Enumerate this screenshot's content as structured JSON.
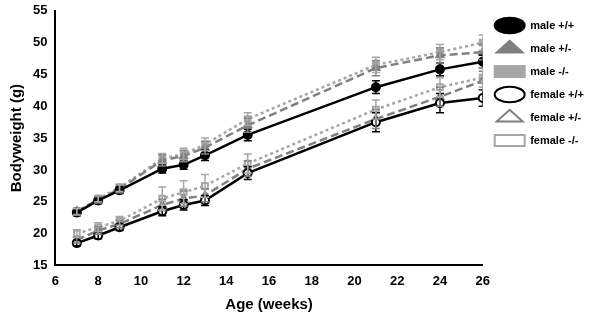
{
  "chart_data": {
    "type": "line",
    "x_label": "Age (weeks)",
    "y_label": "Bodyweight (g)",
    "x": [
      7,
      8,
      9,
      11,
      12,
      13,
      15,
      21,
      24,
      26
    ],
    "xlim": [
      6,
      26
    ],
    "xticks": [
      6,
      8,
      10,
      12,
      14,
      16,
      18,
      20,
      22,
      24,
      26
    ],
    "ylim": [
      15,
      55
    ],
    "yticks": [
      15,
      20,
      25,
      30,
      35,
      40,
      45,
      50,
      55
    ],
    "grid": false,
    "legend": "right",
    "series": [
      {
        "name": "male +/+",
        "color": "#000000",
        "marker": "circle",
        "line_style": "solid",
        "values": [
          23.3,
          25.2,
          26.8,
          30.2,
          30.8,
          32.3,
          35.5,
          43.0,
          45.8,
          47.0
        ],
        "error": [
          0.5,
          0.5,
          0.5,
          0.7,
          0.7,
          0.8,
          0.9,
          1.0,
          1.0,
          1.0
        ]
      },
      {
        "name": "male +/-",
        "color": "#808080",
        "marker": "triangle",
        "line_style": "dashed",
        "values": [
          23.5,
          25.3,
          27.0,
          31.5,
          32.2,
          33.5,
          37.0,
          46.0,
          48.0,
          48.5
        ],
        "error": [
          0.5,
          0.5,
          0.6,
          0.9,
          0.9,
          1.0,
          1.1,
          1.2,
          1.2,
          1.2
        ]
      },
      {
        "name": "male -/-",
        "color": "#a6a6a6",
        "marker": "rect",
        "line_style": "dotted",
        "values": [
          23.4,
          25.5,
          27.2,
          31.8,
          32.5,
          34.0,
          38.0,
          46.5,
          48.5,
          50.0
        ],
        "error": [
          0.5,
          0.5,
          0.6,
          0.8,
          0.9,
          1.0,
          1.0,
          1.2,
          1.2,
          1.2
        ]
      },
      {
        "name": "female +/+",
        "color": "#000000",
        "marker": "circle-open",
        "line_style": "solid",
        "values": [
          18.5,
          19.7,
          21.0,
          23.5,
          24.5,
          25.2,
          29.5,
          37.5,
          40.5,
          41.3
        ],
        "error": [
          0.4,
          0.5,
          0.5,
          0.7,
          0.8,
          0.8,
          1.0,
          1.5,
          1.5,
          1.3
        ]
      },
      {
        "name": "female +/-",
        "color": "#808080",
        "marker": "triangle-open",
        "line_style": "dashed",
        "values": [
          19.0,
          20.5,
          21.5,
          24.5,
          25.5,
          26.0,
          30.2,
          38.0,
          41.5,
          44.0
        ],
        "error": [
          0.5,
          0.6,
          0.6,
          0.9,
          1.2,
          1.0,
          1.2,
          1.5,
          1.5,
          1.5
        ]
      },
      {
        "name": "female -/-",
        "color": "#a6a6a6",
        "marker": "rect-open",
        "line_style": "dotted",
        "values": [
          20.0,
          21.0,
          22.0,
          25.5,
          26.5,
          27.5,
          31.0,
          39.5,
          43.0,
          44.5
        ],
        "error": [
          0.6,
          0.7,
          0.7,
          1.8,
          1.8,
          1.8,
          1.5,
          1.5,
          1.5,
          1.5
        ]
      }
    ]
  }
}
